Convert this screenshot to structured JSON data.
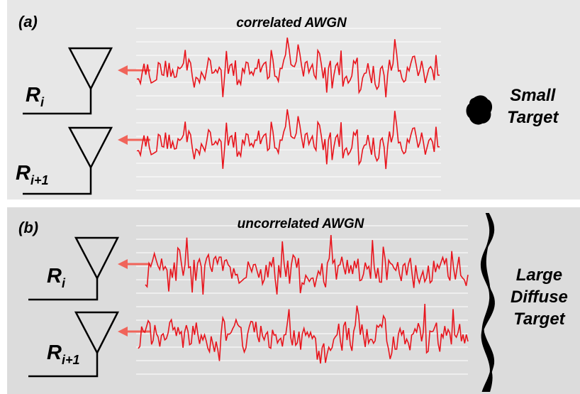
{
  "panel_a": {
    "label": "(a)",
    "title": "correlated AWGN",
    "receivers": [
      {
        "symbol": "R",
        "subscript": "i"
      },
      {
        "symbol": "R",
        "subscript": "i+1"
      }
    ],
    "target_lines": [
      "Small",
      "Target"
    ]
  },
  "panel_b": {
    "label": "(b)",
    "title": "uncorrelated AWGN",
    "receivers": [
      {
        "symbol": "R",
        "subscript": "i"
      },
      {
        "symbol": "R",
        "subscript": "i+1"
      }
    ],
    "target_lines": [
      "Large",
      "Diffuse",
      "Target"
    ]
  },
  "colors": {
    "signal": "#e8141c",
    "arrow": "#f0645a",
    "gridline": "#ffffff",
    "panel_a_bg": "#e7e7e7",
    "panel_b_bg": "#dcdcdc"
  }
}
